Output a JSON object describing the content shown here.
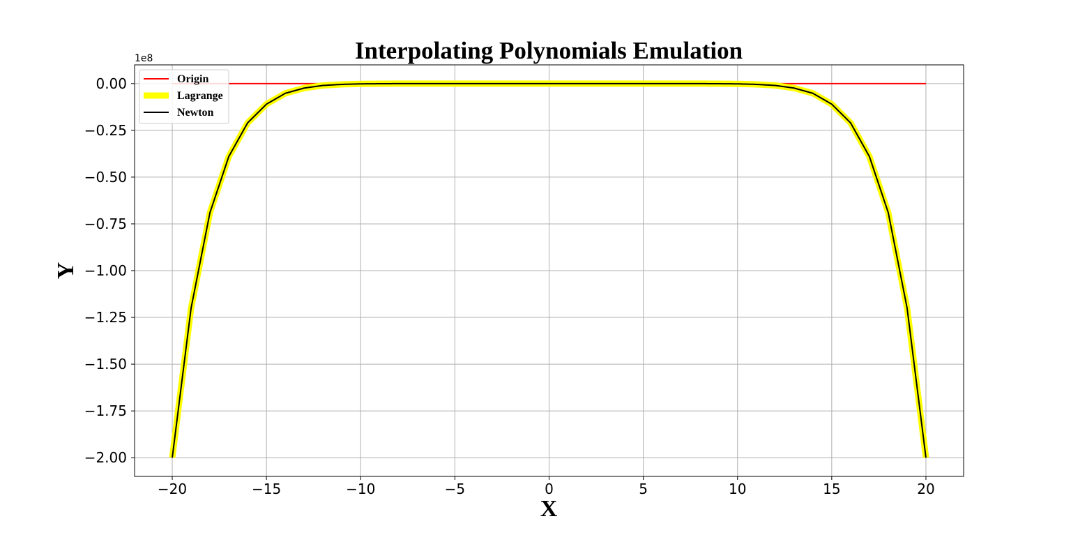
{
  "chart_data": {
    "type": "line",
    "title": "Interpolating Polynomials Emulation",
    "xlabel": "X",
    "ylabel": "Y",
    "y_offset_label": "1e8",
    "xlim": [
      -22,
      22
    ],
    "ylim": [
      -2.1,
      0.1
    ],
    "x_ticks": [
      -20,
      -15,
      -10,
      -5,
      0,
      5,
      10,
      15,
      20
    ],
    "x_tick_labels": [
      "−20",
      "−15",
      "−10",
      "−5",
      "0",
      "5",
      "10",
      "15",
      "20"
    ],
    "y_ticks": [
      0,
      -0.25,
      -0.5,
      -0.75,
      -1.0,
      -1.25,
      -1.5,
      -1.75,
      -2.0
    ],
    "y_tick_labels": [
      "0.00",
      "−0.25",
      "−0.50",
      "−0.75",
      "−1.00",
      "−1.25",
      "−1.50",
      "−1.75",
      "−2.00"
    ],
    "grid": true,
    "legend_position": "top-left",
    "series": [
      {
        "name": "Origin",
        "color": "#ff0000",
        "x": [
          -20,
          20
        ],
        "y": [
          0,
          0
        ]
      },
      {
        "name": "Lagrange",
        "color": "#ffff00",
        "x": [
          -20,
          -19,
          -18,
          -17,
          -16,
          -15,
          -14,
          -13,
          -12,
          -11,
          -10,
          -8,
          -6,
          -4,
          -2,
          0,
          2,
          4,
          6,
          8,
          10,
          11,
          12,
          13,
          14,
          15,
          16,
          17,
          18,
          19,
          20
        ],
        "y": [
          -2.0,
          -1.2,
          -0.69,
          -0.39,
          -0.21,
          -0.11,
          -0.052,
          -0.024,
          -0.01,
          -0.0042,
          -0.0015,
          -0.0002,
          -2e-05,
          0,
          0,
          0,
          0,
          0,
          -2e-05,
          -0.0002,
          -0.0015,
          -0.0042,
          -0.01,
          -0.024,
          -0.052,
          -0.11,
          -0.21,
          -0.39,
          -0.69,
          -1.2,
          -2.0
        ]
      },
      {
        "name": "Newton",
        "color": "#000000",
        "x": [
          -20,
          -19,
          -18,
          -17,
          -16,
          -15,
          -14,
          -13,
          -12,
          -11,
          -10,
          -8,
          -6,
          -4,
          -2,
          0,
          2,
          4,
          6,
          8,
          10,
          11,
          12,
          13,
          14,
          15,
          16,
          17,
          18,
          19,
          20
        ],
        "y": [
          -2.0,
          -1.2,
          -0.69,
          -0.39,
          -0.21,
          -0.11,
          -0.052,
          -0.024,
          -0.01,
          -0.0042,
          -0.0015,
          -0.0002,
          -2e-05,
          0,
          0,
          0,
          0,
          0,
          -2e-05,
          -0.0002,
          -0.0015,
          -0.0042,
          -0.01,
          -0.024,
          -0.052,
          -0.11,
          -0.21,
          -0.39,
          -0.69,
          -1.2,
          -2.0
        ]
      }
    ]
  }
}
